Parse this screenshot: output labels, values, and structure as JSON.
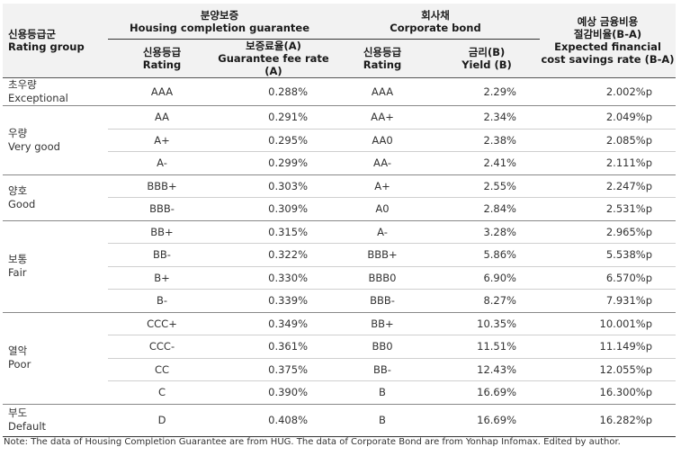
{
  "header": {
    "group_ko": "신용등급군",
    "group_en": "Rating group",
    "hcg_ko": "분양보증",
    "hcg_en": "Housing completion guarantee",
    "bond_ko": "회사채",
    "bond_en": "Corporate bond",
    "cost_ko1": "예상 금융비용",
    "cost_ko2": "절감비율(B-A)",
    "cost_en1": "Expected financial",
    "cost_en2": "cost savings rate (B-A)",
    "rating_ko": "신용등급",
    "rating_en": "Rating",
    "fee_ko": "보증료율(A)",
    "fee_en": "Guarantee fee rate (A)",
    "yield_ko": "금리(B)",
    "yield_en": "Yield (B)"
  },
  "groups": [
    {
      "ko": "초우량",
      "en": "Exceptional"
    },
    {
      "ko": "우량",
      "en": "Very good"
    },
    {
      "ko": "양호",
      "en": "Good"
    },
    {
      "ko": "보통",
      "en": "Fair"
    },
    {
      "ko": "열악",
      "en": "Poor"
    },
    {
      "ko": "부도",
      "en": "Default"
    }
  ],
  "rows": [
    {
      "hcg_rating": "AAA",
      "fee": "0.288%",
      "bond_rating": "AAA",
      "yield": "2.29%",
      "saving": "2.002%p"
    },
    {
      "hcg_rating": "AA",
      "fee": "0.291%",
      "bond_rating": "AA+",
      "yield": "2.34%",
      "saving": "2.049%p"
    },
    {
      "hcg_rating": "A+",
      "fee": "0.295%",
      "bond_rating": "AA0",
      "yield": "2.38%",
      "saving": "2.085%p"
    },
    {
      "hcg_rating": "A-",
      "fee": "0.299%",
      "bond_rating": "AA-",
      "yield": "2.41%",
      "saving": "2.111%p"
    },
    {
      "hcg_rating": "BBB+",
      "fee": "0.303%",
      "bond_rating": "A+",
      "yield": "2.55%",
      "saving": "2.247%p"
    },
    {
      "hcg_rating": "BBB-",
      "fee": "0.309%",
      "bond_rating": "A0",
      "yield": "2.84%",
      "saving": "2.531%p"
    },
    {
      "hcg_rating": "BB+",
      "fee": "0.315%",
      "bond_rating": "A-",
      "yield": "3.28%",
      "saving": "2.965%p"
    },
    {
      "hcg_rating": "BB-",
      "fee": "0.322%",
      "bond_rating": "BBB+",
      "yield": "5.86%",
      "saving": "5.538%p"
    },
    {
      "hcg_rating": "B+",
      "fee": "0.330%",
      "bond_rating": "BBB0",
      "yield": "6.90%",
      "saving": "6.570%p"
    },
    {
      "hcg_rating": "B-",
      "fee": "0.339%",
      "bond_rating": "BBB-",
      "yield": "8.27%",
      "saving": "7.931%p"
    },
    {
      "hcg_rating": "CCC+",
      "fee": "0.349%",
      "bond_rating": "BB+",
      "yield": "10.35%",
      "saving": "10.001%p"
    },
    {
      "hcg_rating": "CCC-",
      "fee": "0.361%",
      "bond_rating": "BB0",
      "yield": "11.51%",
      "saving": "11.149%p"
    },
    {
      "hcg_rating": "CC",
      "fee": "0.375%",
      "bond_rating": "BB-",
      "yield": "12.43%",
      "saving": "12.055%p"
    },
    {
      "hcg_rating": "C",
      "fee": "0.390%",
      "bond_rating": "B",
      "yield": "16.69%",
      "saving": "16.300%p"
    },
    {
      "hcg_rating": "D",
      "fee": "0.408%",
      "bond_rating": "B",
      "yield": "16.69%",
      "saving": "16.282%p"
    }
  ],
  "note": "Note: The data of Housing Completion Guarantee are from HUG. The data of Corporate Bond are from Yonhap Infomax. Edited by author."
}
